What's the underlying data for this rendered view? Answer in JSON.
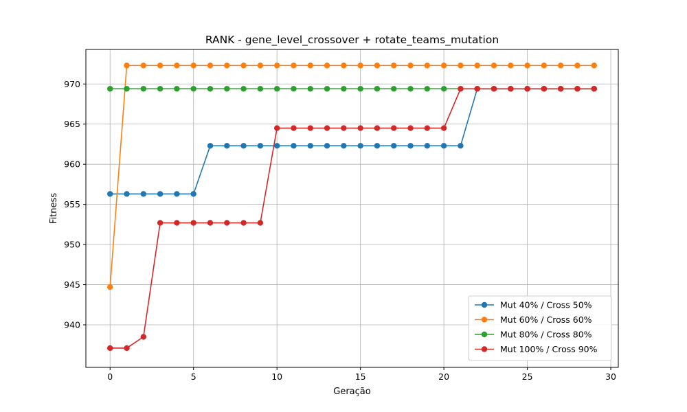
{
  "chart_data": {
    "type": "line",
    "title": "RANK - gene_level_crossover + rotate_teams_mutation",
    "xlabel": "Geração",
    "ylabel": "Fitness",
    "xlim": [
      -1.45,
      30.45
    ],
    "ylim": [
      934.7,
      974.3
    ],
    "xticks": [
      0,
      5,
      10,
      15,
      20,
      25,
      30
    ],
    "yticks": [
      940,
      945,
      950,
      955,
      960,
      965,
      970
    ],
    "grid": true,
    "legend_position": "lower-right",
    "x": [
      0,
      1,
      2,
      3,
      4,
      5,
      6,
      7,
      8,
      9,
      10,
      11,
      12,
      13,
      14,
      15,
      16,
      17,
      18,
      19,
      20,
      21,
      22,
      23,
      24,
      25,
      26,
      27,
      28,
      29
    ],
    "series": [
      {
        "name": "Mut 40% / Cross 50%",
        "color": "#1f77b4",
        "values": [
          956.3,
          956.3,
          956.3,
          956.3,
          956.3,
          956.3,
          962.3,
          962.3,
          962.3,
          962.3,
          962.3,
          962.3,
          962.3,
          962.3,
          962.3,
          962.3,
          962.3,
          962.3,
          962.3,
          962.3,
          962.3,
          962.3,
          969.4,
          969.4,
          969.4,
          969.4,
          969.4,
          969.4,
          969.4,
          969.4
        ]
      },
      {
        "name": "Mut 60% / Cross 60%",
        "color": "#ff7f0e",
        "values": [
          944.7,
          972.3,
          972.3,
          972.3,
          972.3,
          972.3,
          972.3,
          972.3,
          972.3,
          972.3,
          972.3,
          972.3,
          972.3,
          972.3,
          972.3,
          972.3,
          972.3,
          972.3,
          972.3,
          972.3,
          972.3,
          972.3,
          972.3,
          972.3,
          972.3,
          972.3,
          972.3,
          972.3,
          972.3,
          972.3
        ]
      },
      {
        "name": "Mut 80% / Cross 80%",
        "color": "#2ca02c",
        "values": [
          969.4,
          969.4,
          969.4,
          969.4,
          969.4,
          969.4,
          969.4,
          969.4,
          969.4,
          969.4,
          969.4,
          969.4,
          969.4,
          969.4,
          969.4,
          969.4,
          969.4,
          969.4,
          969.4,
          969.4,
          969.4,
          969.4,
          969.4,
          969.4,
          969.4,
          969.4,
          969.4,
          969.4,
          969.4,
          969.4
        ]
      },
      {
        "name": "Mut 100% / Cross 90%",
        "color": "#d62728",
        "values": [
          937.1,
          937.1,
          938.5,
          952.7,
          952.7,
          952.7,
          952.7,
          952.7,
          952.7,
          952.7,
          964.5,
          964.5,
          964.5,
          964.5,
          964.5,
          964.5,
          964.5,
          964.5,
          964.5,
          964.5,
          964.5,
          969.4,
          969.4,
          969.4,
          969.4,
          969.4,
          969.4,
          969.4,
          969.4,
          969.4
        ]
      }
    ]
  }
}
